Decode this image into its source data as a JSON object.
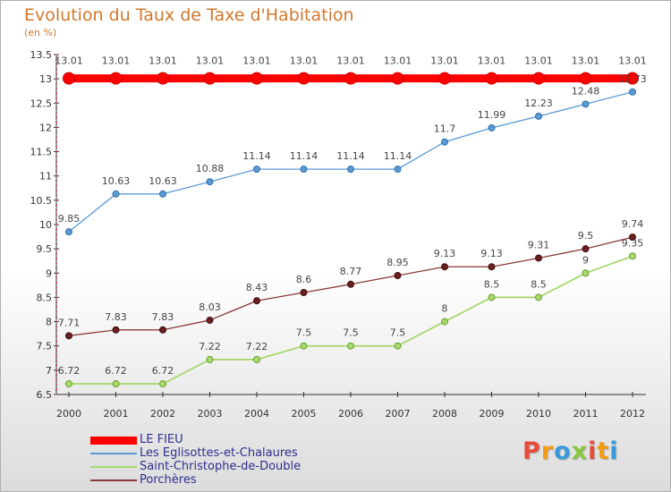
{
  "header": {
    "title": "Evolution du Taux de Taxe d'Habitation",
    "subtitle": "(en %)"
  },
  "logo": {
    "letters": [
      "P",
      "r",
      "o",
      "x",
      "i",
      "t",
      "i"
    ],
    "colors": [
      "#e84c3d",
      "#f39c12",
      "#3a9ad9",
      "#8cc63e",
      "#e84c3d",
      "#f39c12",
      "#3a9ad9"
    ]
  },
  "chart_data": {
    "type": "line",
    "title": "Evolution du Taux de Taxe d'Habitation",
    "ylabel": "(en %)",
    "xlabel": "",
    "x": [
      "2000",
      "2001",
      "2002",
      "2003",
      "2004",
      "2005",
      "2006",
      "2007",
      "2008",
      "2009",
      "2010",
      "2011",
      "2012"
    ],
    "ylim": [
      6.5,
      13.5
    ],
    "yticks": [
      "6.5",
      "7",
      "7.5",
      "8",
      "8.5",
      "9",
      "9.5",
      "10",
      "10.5",
      "11",
      "11.5",
      "12",
      "12.5",
      "13",
      "13.5"
    ],
    "grid": false,
    "legend_position": "bottom-left",
    "series": [
      {
        "name": "LE FIEU",
        "color": "#ff0000",
        "values": [
          13.01,
          13.01,
          13.01,
          13.01,
          13.01,
          13.01,
          13.01,
          13.01,
          13.01,
          13.01,
          13.01,
          13.01,
          13.01
        ],
        "labels": [
          "13.01",
          "13.01",
          "13.01",
          "13.01",
          "13.01",
          "13.01",
          "13.01",
          "13.01",
          "13.01",
          "13.01",
          "13.01",
          "13.01",
          "13.01"
        ]
      },
      {
        "name": "Les Eglisottes-et-Chalaures",
        "color": "#5b9bd5",
        "values": [
          9.85,
          10.63,
          10.63,
          10.88,
          11.14,
          11.14,
          11.14,
          11.14,
          11.7,
          11.99,
          12.23,
          12.48,
          12.73
        ],
        "labels": [
          "9.85",
          "10.63",
          "10.63",
          "10.88",
          "11.14",
          "11.14",
          "11.14",
          "11.14",
          "11.7",
          "11.99",
          "12.23",
          "12.48",
          "12.73"
        ]
      },
      {
        "name": "Saint-Christophe-de-Double",
        "color": "#a8d86e",
        "values": [
          6.72,
          6.72,
          6.72,
          7.22,
          7.22,
          7.5,
          7.5,
          7.5,
          8,
          8.5,
          8.5,
          9,
          9.35
        ],
        "labels": [
          "6.72",
          "6.72",
          "6.72",
          "7.22",
          "7.22",
          "7.5",
          "7.5",
          "7.5",
          "8",
          "8.5",
          "8.5",
          "9",
          "9.35"
        ]
      },
      {
        "name": "Porchères",
        "color": "#8b3a3a",
        "values": [
          7.71,
          7.83,
          7.83,
          8.03,
          8.43,
          8.6,
          8.77,
          8.95,
          9.13,
          9.13,
          9.31,
          9.5,
          9.74
        ],
        "labels": [
          "7.71",
          "7.83",
          "7.83",
          "8.03",
          "8.43",
          "8.6",
          "8.77",
          "8.95",
          "9.13",
          "9.13",
          "9.31",
          "9.5",
          "9.74"
        ]
      }
    ]
  }
}
